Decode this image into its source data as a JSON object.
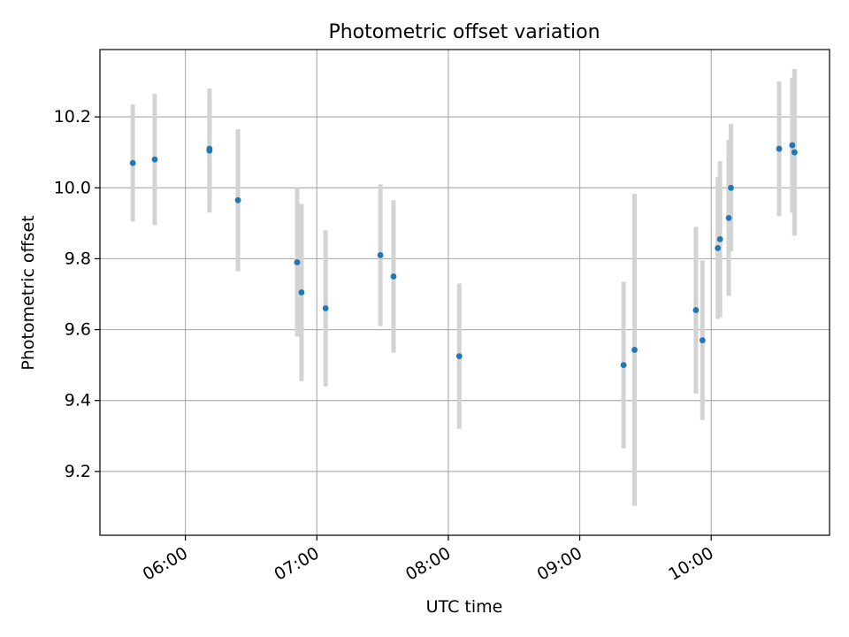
{
  "chart_data": {
    "type": "scatter",
    "title": "Photometric offset variation",
    "xlabel": "UTC time",
    "ylabel": "Photometric offset",
    "x_ticks": [
      "06:00",
      "07:00",
      "08:00",
      "09:00",
      "10:00"
    ],
    "y_ticks": [
      "9.2",
      "9.4",
      "9.6",
      "9.8",
      "10.0",
      "10.2"
    ],
    "xlim": [
      "05:21",
      "10:54"
    ],
    "ylim": [
      9.02,
      10.39
    ],
    "grid": true,
    "colors": {
      "point": "#1f77b4",
      "errorbar": "#d3d3d3",
      "grid": "#b0b0b0",
      "axes": "#000000"
    },
    "series": [
      {
        "points": [
          {
            "x": "05:36",
            "y": 10.07,
            "err": 0.165
          },
          {
            "x": "05:46",
            "y": 10.08,
            "err": 0.185
          },
          {
            "x": "06:11",
            "y": 10.11,
            "err": 0.155
          },
          {
            "x": "06:11",
            "y": 10.105,
            "err": 0.175
          },
          {
            "x": "06:24",
            "y": 9.965,
            "err": 0.2
          },
          {
            "x": "06:51",
            "y": 9.79,
            "err": 0.21
          },
          {
            "x": "06:53",
            "y": 9.705,
            "err": 0.25
          },
          {
            "x": "07:04",
            "y": 9.66,
            "err": 0.22
          },
          {
            "x": "07:29",
            "y": 9.81,
            "err": 0.2
          },
          {
            "x": "07:35",
            "y": 9.75,
            "err": 0.215
          },
          {
            "x": "08:05",
            "y": 9.525,
            "err": 0.205
          },
          {
            "x": "09:20",
            "y": 9.5,
            "err": 0.235
          },
          {
            "x": "09:25",
            "y": 9.543,
            "err": 0.44
          },
          {
            "x": "09:53",
            "y": 9.655,
            "err": 0.235
          },
          {
            "x": "09:56",
            "y": 9.57,
            "err": 0.225
          },
          {
            "x": "10:03",
            "y": 9.83,
            "err": 0.2
          },
          {
            "x": "10:04",
            "y": 9.855,
            "err": 0.22
          },
          {
            "x": "10:08",
            "y": 9.915,
            "err": 0.22
          },
          {
            "x": "10:09",
            "y": 10.0,
            "err": 0.18
          },
          {
            "x": "10:31",
            "y": 10.11,
            "err": 0.19
          },
          {
            "x": "10:37",
            "y": 10.12,
            "err": 0.19
          },
          {
            "x": "10:38",
            "y": 10.1,
            "err": 0.235
          }
        ]
      }
    ]
  }
}
